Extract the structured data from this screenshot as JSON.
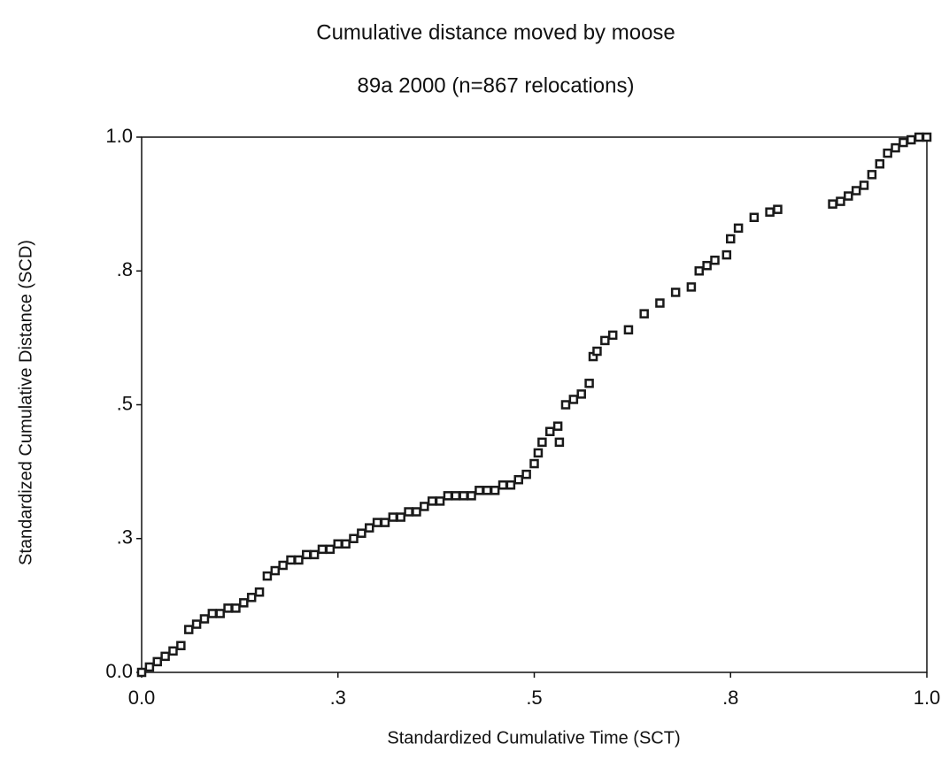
{
  "chart_data": {
    "type": "scatter",
    "title": "Cumulative distance moved by moose",
    "subtitle": "89a 2000 (n=867 relocations)",
    "x_label": "Standardized Cumulative Time (SCT)",
    "y_label": "Standardized Cumulative Distance (SCD)",
    "color": "#1a1a1a",
    "marker": "square",
    "xlim": [
      0,
      1
    ],
    "ylim": [
      0,
      1
    ],
    "xticks": [
      {
        "value": 0,
        "label": "0.0"
      },
      {
        "value": 0.25,
        "label": ".3"
      },
      {
        "value": 0.5,
        "label": ".5"
      },
      {
        "value": 0.75,
        "label": ".8"
      },
      {
        "value": 1,
        "label": "1.0"
      }
    ],
    "yticks": [
      {
        "value": 0,
        "label": "0.0"
      },
      {
        "value": 0.25,
        "label": ".3"
      },
      {
        "value": 0.5,
        "label": ".5"
      },
      {
        "value": 0.75,
        "label": ".8"
      },
      {
        "value": 1,
        "label": "1.0"
      }
    ],
    "x": [
      0,
      0.01,
      0.02,
      0.03,
      0.04,
      0.05,
      0.06,
      0.07,
      0.08,
      0.09,
      0.1,
      0.11,
      0.12,
      0.13,
      0.14,
      0.15,
      0.16,
      0.17,
      0.18,
      0.19,
      0.2,
      0.21,
      0.22,
      0.23,
      0.24,
      0.25,
      0.26,
      0.27,
      0.28,
      0.29,
      0.3,
      0.31,
      0.32,
      0.33,
      0.34,
      0.35,
      0.36,
      0.37,
      0.38,
      0.39,
      0.4,
      0.41,
      0.42,
      0.43,
      0.44,
      0.45,
      0.46,
      0.47,
      0.48,
      0.49,
      0.5,
      0.505,
      0.51,
      0.52,
      0.53,
      0.532,
      0.54,
      0.55,
      0.56,
      0.57,
      0.575,
      0.58,
      0.59,
      0.6,
      0.62,
      0.64,
      0.66,
      0.68,
      0.7,
      0.71,
      0.72,
      0.73,
      0.745,
      0.75,
      0.76,
      0.78,
      0.8,
      0.81,
      0.88,
      0.89,
      0.9,
      0.91,
      0.92,
      0.93,
      0.94,
      0.95,
      0.96,
      0.97,
      0.98,
      0.99,
      1.0
    ],
    "values": [
      0,
      0.01,
      0.02,
      0.03,
      0.04,
      0.05,
      0.08,
      0.09,
      0.1,
      0.11,
      0.11,
      0.12,
      0.12,
      0.13,
      0.14,
      0.15,
      0.18,
      0.19,
      0.2,
      0.21,
      0.21,
      0.22,
      0.22,
      0.23,
      0.23,
      0.24,
      0.24,
      0.25,
      0.26,
      0.27,
      0.28,
      0.28,
      0.29,
      0.29,
      0.3,
      0.3,
      0.31,
      0.32,
      0.32,
      0.33,
      0.33,
      0.33,
      0.33,
      0.34,
      0.34,
      0.34,
      0.35,
      0.35,
      0.36,
      0.37,
      0.39,
      0.41,
      0.43,
      0.45,
      0.46,
      0.43,
      0.5,
      0.51,
      0.52,
      0.54,
      0.59,
      0.6,
      0.62,
      0.63,
      0.64,
      0.67,
      0.69,
      0.71,
      0.72,
      0.75,
      0.76,
      0.77,
      0.78,
      0.81,
      0.83,
      0.85,
      0.86,
      0.865,
      0.875,
      0.88,
      0.89,
      0.9,
      0.91,
      0.93,
      0.95,
      0.97,
      0.98,
      0.99,
      0.995,
      1.0,
      1.0
    ]
  }
}
